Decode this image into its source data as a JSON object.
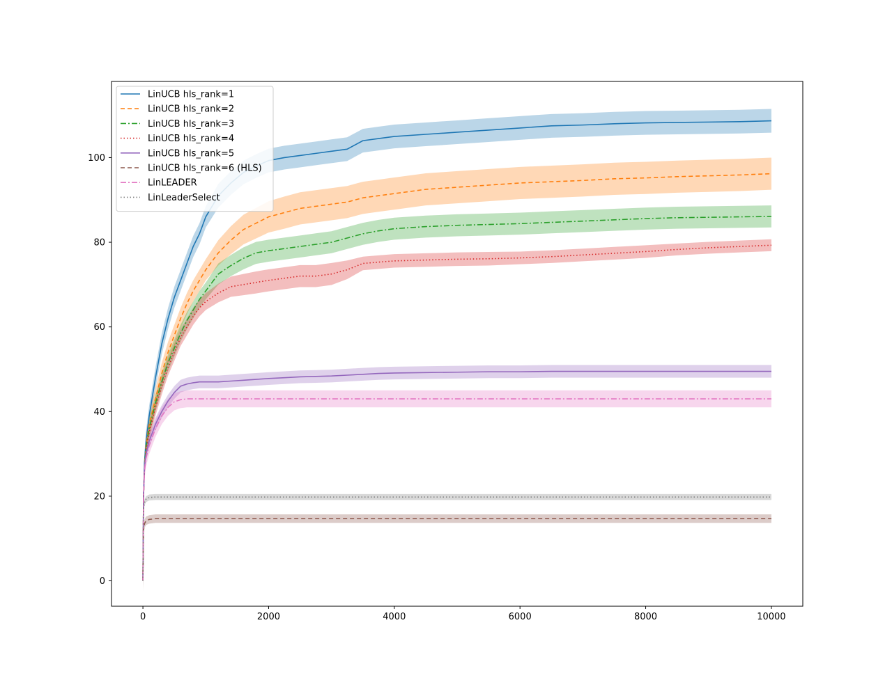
{
  "chart_data": {
    "type": "line",
    "title": "",
    "xlabel": "",
    "ylabel": "",
    "xlim": [
      -500,
      10500
    ],
    "ylim": [
      -6,
      118
    ],
    "x_ticks": [
      0,
      2000,
      4000,
      6000,
      8000,
      10000
    ],
    "y_ticks": [
      0,
      20,
      40,
      60,
      80,
      100
    ],
    "x_tick_labels": [
      "0",
      "2000",
      "4000",
      "6000",
      "8000",
      "10000"
    ],
    "y_tick_labels": [
      "0",
      "20",
      "40",
      "60",
      "80",
      "100"
    ],
    "legend_position": "top-left",
    "grid": false,
    "x": [
      0,
      10,
      25,
      50,
      100,
      200,
      300,
      400,
      500,
      600,
      700,
      800,
      900,
      1000,
      1200,
      1400,
      1600,
      1800,
      2000,
      2250,
      2500,
      2750,
      3000,
      3250,
      3500,
      3750,
      4000,
      4500,
      5000,
      5500,
      6000,
      6500,
      7000,
      7500,
      8000,
      8500,
      9000,
      9500,
      10000
    ],
    "series": [
      {
        "name": "LinUCB hls_rank=1",
        "color": "#1f77b4",
        "dash": "solid",
        "values": [
          0,
          20,
          28,
          33,
          39,
          48,
          56,
          62,
          67,
          71,
          75,
          79,
          82,
          86,
          91,
          94,
          96.5,
          98,
          99.3,
          100,
          100.5,
          101,
          101.5,
          102,
          104,
          104.5,
          105,
          105.5,
          106,
          106.5,
          107,
          107.5,
          107.7,
          108,
          108.2,
          108.3,
          108.4,
          108.5,
          108.7
        ],
        "band": [
          2.5,
          2.5,
          2.5,
          2.5,
          2.5,
          2.5,
          2.5,
          2.5,
          2.5,
          2.5,
          2.5,
          2.5,
          2.5,
          2.5,
          2.8,
          2.8,
          2.8,
          2.8,
          2.8,
          2.8,
          2.8,
          2.8,
          2.8,
          2.8,
          2.8,
          2.8,
          2.8,
          2.8,
          2.8,
          2.8,
          2.8,
          2.8,
          2.8,
          2.8,
          2.8,
          2.8,
          2.8,
          2.8,
          2.8
        ]
      },
      {
        "name": "LinUCB hls_rank=2",
        "color": "#ff7f0e",
        "dash": "6,4",
        "values": [
          0,
          20,
          27,
          32,
          37,
          43,
          49,
          54,
          58,
          62,
          65.5,
          68.5,
          71,
          73.5,
          77.5,
          80.5,
          83,
          84.5,
          86,
          87,
          88,
          88.5,
          89,
          89.5,
          90.5,
          91,
          91.5,
          92.5,
          93,
          93.5,
          94,
          94.3,
          94.6,
          95,
          95.2,
          95.5,
          95.7,
          95.9,
          96.2
        ],
        "band": [
          2.5,
          2.5,
          2.5,
          2.5,
          2.5,
          2.5,
          2.5,
          2.5,
          2.5,
          2.5,
          2.5,
          2.5,
          2.5,
          2.5,
          3.0,
          3.3,
          3.5,
          3.6,
          3.7,
          3.8,
          3.8,
          3.8,
          3.8,
          3.8,
          3.8,
          3.8,
          3.8,
          3.8,
          3.8,
          3.8,
          3.8,
          3.8,
          3.8,
          3.8,
          3.8,
          3.8,
          3.8,
          3.8,
          3.8
        ]
      },
      {
        "name": "LinUCB hls_rank=3",
        "color": "#2ca02c",
        "dash": "8,3,2,3",
        "values": [
          0,
          20,
          27,
          31.5,
          36,
          42,
          47,
          51.5,
          55,
          58.5,
          61.5,
          64,
          66.5,
          68.5,
          72.5,
          74.5,
          76.2,
          77.5,
          78,
          78.5,
          79,
          79.5,
          80,
          81,
          82,
          82.7,
          83.2,
          83.7,
          84,
          84.2,
          84.4,
          84.7,
          85,
          85.3,
          85.6,
          85.8,
          85.9,
          86,
          86.1
        ],
        "band": [
          2.0,
          2.0,
          2.0,
          2.0,
          2.0,
          2.0,
          2.0,
          2.0,
          2.0,
          2.0,
          2.0,
          2.0,
          2.0,
          2.0,
          2.5,
          2.5,
          2.6,
          2.6,
          2.6,
          2.6,
          2.6,
          2.6,
          2.6,
          2.6,
          2.6,
          2.6,
          2.6,
          2.6,
          2.6,
          2.6,
          2.6,
          2.6,
          2.6,
          2.6,
          2.6,
          2.6,
          2.6,
          2.6,
          2.6
        ]
      },
      {
        "name": "LinUCB hls_rank=4",
        "color": "#d62728",
        "dash": "1.5,3",
        "values": [
          0,
          20,
          26.5,
          31,
          35,
          41,
          46,
          50.5,
          54,
          57.5,
          60,
          62.5,
          64.5,
          66,
          68,
          69.5,
          70,
          70.5,
          71,
          71.5,
          72,
          72,
          72.5,
          73.5,
          75,
          75.3,
          75.6,
          75.8,
          76,
          76.1,
          76.3,
          76.6,
          77,
          77.4,
          77.8,
          78.3,
          78.7,
          79,
          79.3
        ],
        "band": [
          2.0,
          2.0,
          2.0,
          2.0,
          2.0,
          2.0,
          2.0,
          2.0,
          2.0,
          2.0,
          2.0,
          2.0,
          2.0,
          2.0,
          2.2,
          2.4,
          2.5,
          2.6,
          2.6,
          2.6,
          2.6,
          2.6,
          2.6,
          2.2,
          1.6,
          1.6,
          1.6,
          1.6,
          1.6,
          1.6,
          1.5,
          1.5,
          1.5,
          1.5,
          1.5,
          1.4,
          1.4,
          1.4,
          1.4
        ]
      },
      {
        "name": "LinUCB hls_rank=5",
        "color": "#9467bd",
        "dash": "solid",
        "values": [
          0,
          20,
          27,
          30,
          33,
          37,
          40,
          42.5,
          44.5,
          46,
          46.5,
          46.8,
          47,
          47,
          47,
          47.2,
          47.4,
          47.6,
          47.8,
          48,
          48.2,
          48.3,
          48.4,
          48.6,
          48.8,
          49,
          49.1,
          49.2,
          49.3,
          49.4,
          49.4,
          49.5,
          49.5,
          49.5,
          49.5,
          49.5,
          49.5,
          49.5,
          49.5
        ],
        "band": [
          1.5,
          1.5,
          1.5,
          1.5,
          1.5,
          1.5,
          1.5,
          1.5,
          1.5,
          1.5,
          1.5,
          1.5,
          1.5,
          1.5,
          1.5,
          1.5,
          1.5,
          1.5,
          1.5,
          1.5,
          1.5,
          1.5,
          1.5,
          1.5,
          1.5,
          1.5,
          1.5,
          1.5,
          1.5,
          1.5,
          1.5,
          1.5,
          1.5,
          1.5,
          1.5,
          1.5,
          1.5,
          1.5,
          1.5
        ]
      },
      {
        "name": "LinUCB hls_rank=6 (HLS)",
        "color": "#8c564b",
        "dash": "6,4",
        "values": [
          0,
          12,
          13.5,
          14.2,
          14.5,
          14.7,
          14.7,
          14.7,
          14.7,
          14.7,
          14.7,
          14.7,
          14.7,
          14.7,
          14.7,
          14.7,
          14.7,
          14.7,
          14.7,
          14.7,
          14.7,
          14.7,
          14.7,
          14.7,
          14.7,
          14.7,
          14.7,
          14.7,
          14.7,
          14.7,
          14.7,
          14.7,
          14.7,
          14.7,
          14.7,
          14.7,
          14.7,
          14.7,
          14.7
        ],
        "band": [
          1.0,
          1.0,
          1.0,
          1.0,
          1.0,
          1.0,
          1.0,
          1.0,
          1.0,
          1.0,
          1.0,
          1.0,
          1.0,
          1.0,
          1.0,
          1.0,
          1.0,
          1.0,
          1.0,
          1.0,
          1.0,
          1.0,
          1.0,
          1.0,
          1.0,
          1.0,
          1.0,
          1.0,
          1.0,
          1.0,
          1.0,
          1.0,
          1.0,
          1.0,
          1.0,
          1.0,
          1.0,
          1.0,
          1.0
        ]
      },
      {
        "name": "LinLEADER",
        "color": "#e377c2",
        "dash": "8,3,2,3",
        "values": [
          0,
          20,
          26,
          29,
          32,
          36,
          39,
          41,
          42.3,
          42.8,
          43,
          43,
          43,
          43,
          43,
          43,
          43,
          43,
          43,
          43,
          43,
          43,
          43,
          43,
          43,
          43,
          43,
          43,
          43,
          43,
          43,
          43,
          43,
          43,
          43,
          43,
          43,
          43,
          43
        ],
        "band": [
          2.0,
          2.0,
          2.0,
          2.0,
          2.0,
          2.0,
          2.0,
          2.0,
          2.0,
          2.0,
          2.0,
          2.0,
          2.0,
          2.0,
          2.0,
          2.0,
          2.0,
          2.0,
          2.0,
          2.0,
          2.0,
          2.0,
          2.0,
          2.0,
          2.0,
          2.0,
          2.0,
          2.0,
          2.0,
          2.0,
          2.0,
          2.0,
          2.0,
          2.0,
          2.0,
          2.0,
          2.0,
          2.0,
          2.0
        ]
      },
      {
        "name": "LinLeaderSelect",
        "color": "#7f7f7f",
        "dash": "1.5,3",
        "values": [
          0,
          17,
          18.5,
          19.3,
          19.7,
          19.8,
          19.8,
          19.8,
          19.8,
          19.8,
          19.8,
          19.8,
          19.8,
          19.8,
          19.8,
          19.8,
          19.8,
          19.8,
          19.8,
          19.8,
          19.8,
          19.8,
          19.8,
          19.8,
          19.8,
          19.8,
          19.8,
          19.8,
          19.8,
          19.8,
          19.8,
          19.8,
          19.8,
          19.8,
          19.8,
          19.8,
          19.8,
          19.8,
          19.8
        ],
        "band": [
          0.7,
          0.7,
          0.7,
          0.7,
          0.7,
          0.7,
          0.7,
          0.7,
          0.7,
          0.7,
          0.7,
          0.7,
          0.7,
          0.7,
          0.7,
          0.7,
          0.7,
          0.7,
          0.7,
          0.7,
          0.7,
          0.7,
          0.7,
          0.7,
          0.7,
          0.7,
          0.7,
          0.7,
          0.7,
          0.7,
          0.7,
          0.7,
          0.7,
          0.7,
          0.7,
          0.7,
          0.7,
          0.7,
          0.7
        ]
      }
    ]
  }
}
